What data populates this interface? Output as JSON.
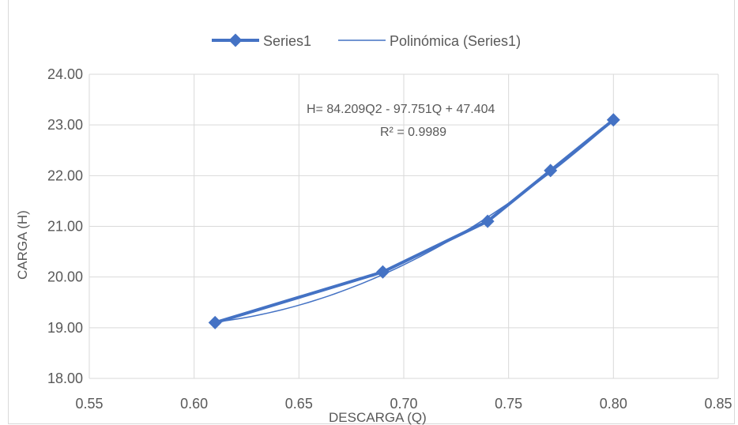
{
  "chart_data": {
    "type": "scatter",
    "xlabel": "DESCARGA (Q)",
    "ylabel": "CARGA (H)",
    "xlim": [
      0.55,
      0.85
    ],
    "ylim": [
      18.0,
      24.0
    ],
    "x_ticks": [
      "0.55",
      "0.60",
      "0.65",
      "0.70",
      "0.75",
      "0.80",
      "0.85"
    ],
    "y_ticks": [
      "18.00",
      "19.00",
      "20.00",
      "21.00",
      "22.00",
      "23.00",
      "24.00"
    ],
    "grid": true,
    "legend_position": "top",
    "series": [
      {
        "name": "Series1",
        "style": "line-with-diamond-markers",
        "color": "#4472c4",
        "x": [
          0.61,
          0.69,
          0.74,
          0.77,
          0.8
        ],
        "y": [
          19.1,
          20.1,
          21.1,
          22.1,
          23.1
        ]
      },
      {
        "name": "Polinómica (Series1)",
        "style": "trendline-polynomial-2",
        "color": "#4472c4",
        "coefficients": {
          "a": 84.209,
          "b": -97.751,
          "c": 47.404
        },
        "x_range": [
          0.61,
          0.8
        ]
      }
    ],
    "annotations": {
      "equation": "H= 84.209Q2 - 97.751Q + 47.404",
      "r_squared": "R² = 0.9989"
    }
  }
}
